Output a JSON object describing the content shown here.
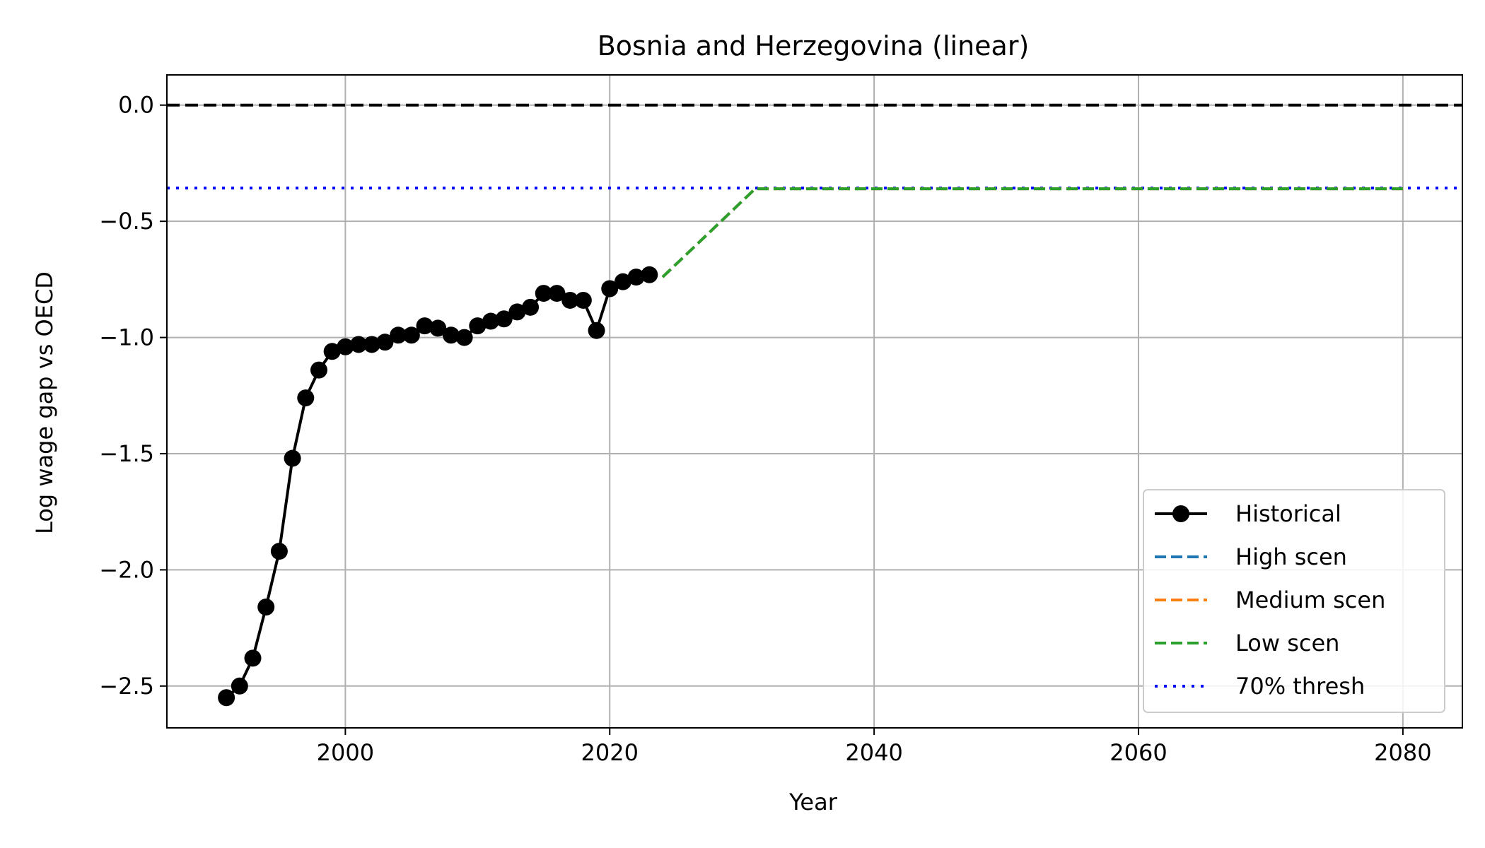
{
  "chart_data": {
    "type": "line",
    "title": "Bosnia and Herzegovina (linear)",
    "xlabel": "Year",
    "ylabel": "Log wage gap vs OECD",
    "xlim": [
      1986.5,
      2084.5
    ],
    "ylim": [
      -2.68,
      0.13
    ],
    "x_ticks": [
      2000,
      2020,
      2040,
      2060,
      2080
    ],
    "x_tick_labels": [
      "2000",
      "2020",
      "2040",
      "2060",
      "2080"
    ],
    "y_ticks": [
      0.0,
      -0.5,
      -1.0,
      -1.5,
      -2.0,
      -2.5
    ],
    "y_tick_labels": [
      "0.0",
      "−0.5",
      "−1.0",
      "−1.5",
      "−2.0",
      "−2.5"
    ],
    "grid": true,
    "legend_position": "lower-right",
    "reference_lines": [
      {
        "y": 0.0,
        "color": "#000000",
        "style": "dashed"
      },
      {
        "y": -0.357,
        "color": "#0000ff",
        "style": "dotted",
        "legend": "70% thresh"
      }
    ],
    "series": [
      {
        "name": "Historical",
        "color": "#000000",
        "style": "solid-markers",
        "x": [
          1991,
          1992,
          1993,
          1994,
          1995,
          1996,
          1997,
          1998,
          1999,
          2000,
          2001,
          2002,
          2003,
          2004,
          2005,
          2006,
          2007,
          2008,
          2009,
          2010,
          2011,
          2012,
          2013,
          2014,
          2015,
          2016,
          2017,
          2018,
          2019,
          2020,
          2021,
          2022,
          2023
        ],
        "y": [
          -2.55,
          -2.5,
          -2.38,
          -2.16,
          -1.92,
          -1.52,
          -1.26,
          -1.14,
          -1.06,
          -1.04,
          -1.03,
          -1.03,
          -1.02,
          -0.99,
          -0.99,
          -0.95,
          -0.96,
          -0.99,
          -1.0,
          -0.95,
          -0.93,
          -0.92,
          -0.89,
          -0.87,
          -0.81,
          -0.81,
          -0.84,
          -0.84,
          -0.97,
          -0.79,
          -0.76,
          -0.74,
          -0.73
        ]
      },
      {
        "name": "High scen",
        "color": "#1f77b4",
        "style": "dashed",
        "x": [
          2024,
          2031,
          2080
        ],
        "y": [
          -0.74,
          -0.36,
          -0.36
        ]
      },
      {
        "name": "Medium scen",
        "color": "#ff7f0e",
        "style": "dashed",
        "x": [
          2024,
          2031,
          2080
        ],
        "y": [
          -0.74,
          -0.36,
          -0.36
        ]
      },
      {
        "name": "Low scen",
        "color": "#2ca02c",
        "style": "dashed",
        "x": [
          2024,
          2031,
          2080
        ],
        "y": [
          -0.74,
          -0.36,
          -0.36
        ]
      }
    ]
  }
}
